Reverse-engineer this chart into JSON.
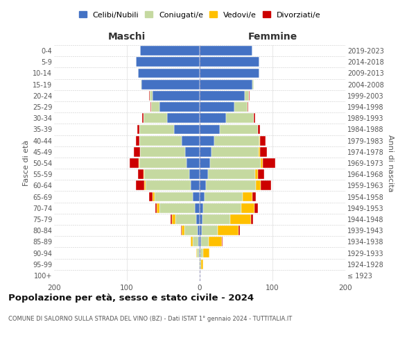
{
  "age_groups": [
    "100+",
    "95-99",
    "90-94",
    "85-89",
    "80-84",
    "75-79",
    "70-74",
    "65-69",
    "60-64",
    "55-59",
    "50-54",
    "45-49",
    "40-44",
    "35-39",
    "30-34",
    "25-29",
    "20-24",
    "15-19",
    "10-14",
    "5-9",
    "0-4"
  ],
  "birth_years": [
    "≤ 1923",
    "1924-1928",
    "1929-1933",
    "1934-1938",
    "1939-1943",
    "1944-1948",
    "1949-1953",
    "1954-1958",
    "1959-1963",
    "1964-1968",
    "1969-1973",
    "1974-1978",
    "1979-1983",
    "1984-1988",
    "1989-1993",
    "1994-1998",
    "1999-2003",
    "2004-2008",
    "2009-2013",
    "2014-2018",
    "2019-2023"
  ],
  "maschi": {
    "celibi": [
      0,
      0,
      1,
      2,
      3,
      5,
      7,
      10,
      12,
      14,
      18,
      20,
      25,
      35,
      45,
      55,
      65,
      80,
      85,
      88,
      82
    ],
    "coniugati": [
      0,
      1,
      3,
      8,
      18,
      28,
      48,
      52,
      62,
      62,
      65,
      62,
      58,
      48,
      32,
      12,
      4,
      1,
      0,
      0,
      0
    ],
    "vedovi": [
      0,
      0,
      1,
      2,
      4,
      5,
      4,
      3,
      2,
      1,
      1,
      0,
      0,
      0,
      0,
      0,
      0,
      0,
      0,
      0,
      0
    ],
    "divorziati": [
      0,
      0,
      0,
      0,
      1,
      2,
      2,
      5,
      12,
      8,
      12,
      8,
      5,
      3,
      2,
      1,
      1,
      0,
      0,
      0,
      0
    ]
  },
  "femmine": {
    "nubili": [
      0,
      0,
      1,
      2,
      3,
      4,
      5,
      7,
      9,
      11,
      14,
      16,
      20,
      28,
      36,
      48,
      62,
      72,
      82,
      82,
      72
    ],
    "coniugate": [
      0,
      2,
      4,
      10,
      22,
      38,
      52,
      52,
      68,
      65,
      70,
      65,
      62,
      52,
      38,
      18,
      6,
      2,
      0,
      0,
      0
    ],
    "vedove": [
      0,
      3,
      8,
      18,
      28,
      28,
      18,
      13,
      7,
      4,
      3,
      2,
      1,
      0,
      0,
      0,
      0,
      0,
      0,
      0,
      0
    ],
    "divorziate": [
      0,
      0,
      0,
      1,
      2,
      3,
      5,
      5,
      14,
      9,
      17,
      9,
      7,
      3,
      2,
      1,
      1,
      0,
      0,
      0,
      0
    ]
  },
  "colors": {
    "celibi": "#4472c4",
    "coniugati": "#c5d9a0",
    "vedovi": "#ffc000",
    "divorziati": "#cc0000"
  },
  "xlim": 200,
  "title": "Popolazione per età, sesso e stato civile - 2024",
  "subtitle": "COMUNE DI SALORNO SULLA STRADA DEL VINO (BZ) - Dati ISTAT 1° gennaio 2024 - TUTTITALIA.IT",
  "xlabel_left": "Maschi",
  "xlabel_right": "Femmine",
  "ylabel_left": "Fasce di età",
  "ylabel_right": "Anni di nascita",
  "legend_labels": [
    "Celibi/Nubili",
    "Coniugati/e",
    "Vedovi/e",
    "Divorziati/e"
  ],
  "legend_marker_colors": [
    "#4472c4",
    "#c5d9a0",
    "#ffc000",
    "#cc0000"
  ]
}
